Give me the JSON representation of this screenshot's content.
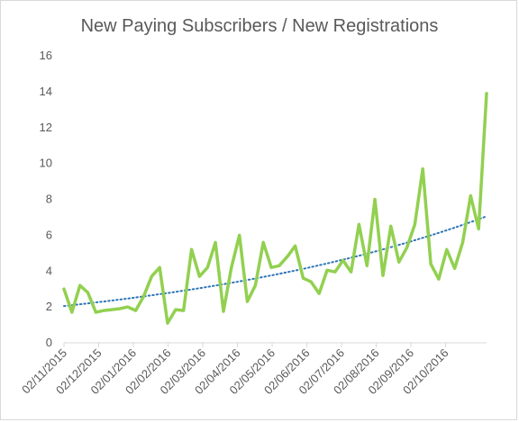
{
  "chart_data": {
    "type": "line",
    "title": "New Paying Subscribers / New Registrations",
    "xlabel": "",
    "ylabel": "",
    "ylim": [
      0,
      16
    ],
    "yticks": [
      0,
      2,
      4,
      6,
      8,
      10,
      12,
      14,
      16
    ],
    "grid": false,
    "legend": "none",
    "x_tick_labels": [
      "02/11/2015",
      "02/12/2015",
      "02/01/2016",
      "02/02/2016",
      "02/03/2016",
      "02/04/2016",
      "02/05/2016",
      "02/06/2016",
      "02/07/2016",
      "02/08/2016",
      "02/09/2016",
      "02/10/2016"
    ],
    "series": [
      {
        "kind": "data",
        "color": "#92d050",
        "values": [
          3.0,
          1.7,
          3.2,
          2.8,
          1.7,
          1.8,
          1.85,
          1.9,
          2.0,
          1.8,
          2.6,
          3.7,
          4.2,
          1.1,
          1.85,
          1.8,
          5.2,
          3.7,
          4.2,
          5.6,
          1.75,
          4.2,
          6.0,
          2.3,
          3.2,
          5.6,
          4.2,
          4.3,
          4.8,
          5.4,
          3.6,
          3.4,
          2.75,
          4.05,
          3.95,
          4.6,
          3.95,
          6.6,
          4.3,
          8.0,
          3.75,
          6.5,
          4.5,
          5.3,
          6.6,
          9.7,
          4.4,
          3.55,
          5.2,
          4.15,
          5.6,
          8.2,
          6.35,
          13.9
        ]
      },
      {
        "kind": "trendline",
        "style": "dotted",
        "color": "#2e75b6",
        "start": 2.05,
        "end": 7.05
      }
    ]
  }
}
